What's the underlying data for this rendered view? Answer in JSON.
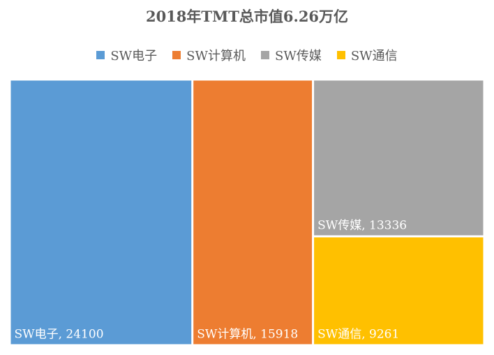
{
  "chart_data": {
    "type": "treemap",
    "title": "2018年TMT总市值6.26万亿",
    "legend_position": "top",
    "series": [
      {
        "name": "SW电子",
        "value": 24100,
        "label": "SW电子, 24100",
        "color": "#5b9bd5"
      },
      {
        "name": "SW计算机",
        "value": 15918,
        "label": "SW计算机, 15918",
        "color": "#ed7d31"
      },
      {
        "name": "SW传媒",
        "value": 13336,
        "label": "SW传媒, 13336",
        "color": "#a5a5a5"
      },
      {
        "name": "SW通信",
        "value": 9261,
        "label": "SW通信, 9261",
        "color": "#ffc000"
      }
    ]
  }
}
